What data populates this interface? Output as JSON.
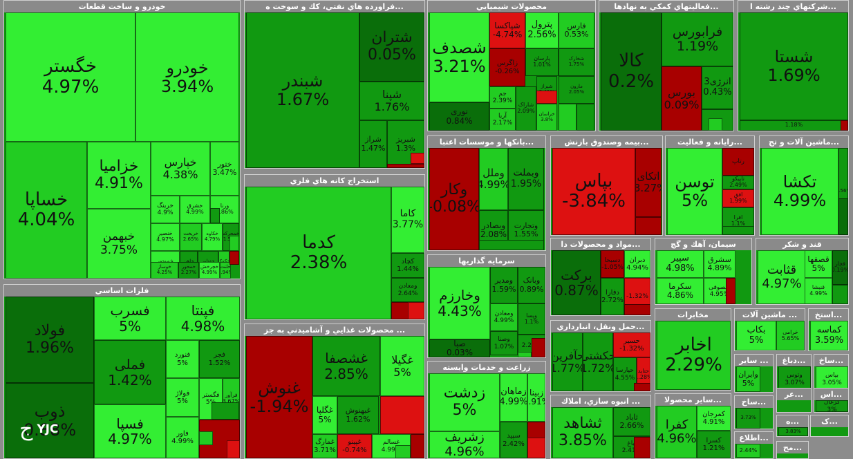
{
  "logo_text": "YJC",
  "colors": {
    "bright": "#33ee33",
    "light": "#22cc22",
    "mid": "#119911",
    "dark": "#0a6e0a",
    "red_dark": "#a80000",
    "red": "#dd1111"
  },
  "chart_data": {
    "type": "treemap",
    "sectors": [
      {
        "name": "خودرو و ساخت قطعات",
        "tiles": [
          {
            "name": "خگستر",
            "value": "4.97%"
          },
          {
            "name": "خودرو",
            "value": "3.94%"
          },
          {
            "name": "خساپا",
            "value": "4.04%"
          },
          {
            "name": "خزامیا",
            "value": "4.91%"
          },
          {
            "name": "خپارس",
            "value": "4.38%"
          },
          {
            "name": "ختور",
            "value": "3.47%"
          },
          {
            "name": "خبهمن",
            "value": "3.75%"
          },
          {
            "name": "خرینگ",
            "value": "4.9%"
          },
          {
            "name": "خشرق",
            "value": "4.99%"
          },
          {
            "name": "ورنا",
            "value": "3.86%"
          },
          {
            "name": "خنصیر",
            "value": "4.97%"
          },
          {
            "name": "خریخت",
            "value": "2.65%"
          },
          {
            "name": "خکاوه",
            "value": "4.79%"
          },
          {
            "name": "خمحرکه",
            "value": "1.55%"
          },
          {
            "name": "خموتور",
            "value": "4.91%"
          },
          {
            "name": "خاهن",
            "value": "3.12%"
          },
          {
            "name": "خفناور",
            "value": "2.55%"
          },
          {
            "name": "خکمک",
            "value": "3.6%"
          },
          {
            "name": "خوساز",
            "value": "4.25%"
          },
          {
            "name": "خمحور",
            "value": "2.27%"
          },
          {
            "name": "خچرخش",
            "value": "4.99%"
          },
          {
            "name": "خلنت",
            "value": "3.94%"
          }
        ]
      },
      {
        "name": "فراورده هاي نفتي، كك و سوخت ه...",
        "tiles": [
          {
            "name": "شبندر",
            "value": "1.67%"
          },
          {
            "name": "شتران",
            "value": "0.05%"
          },
          {
            "name": "شپنا",
            "value": "1.76%"
          },
          {
            "name": "شراز",
            "value": "1.47%"
          },
          {
            "name": "شبریز",
            "value": "1.3%"
          }
        ]
      },
      {
        "name": "محصولات شيميايي",
        "tiles": [
          {
            "name": "شصدف",
            "value": "3.21%"
          },
          {
            "name": "شپاکسا",
            "value": "-4.74%"
          },
          {
            "name": "پترول",
            "value": "2.56%"
          },
          {
            "name": "فارس",
            "value": "0.53%"
          },
          {
            "name": "نوری",
            "value": "0.84%"
          },
          {
            "name": "زاگرس",
            "value": "-0.26%"
          },
          {
            "name": "پارسان",
            "value": "1.01%"
          },
          {
            "name": "شخارک",
            "value": "1.75%"
          },
          {
            "name": "جم",
            "value": "2.39%"
          },
          {
            "name": "آریا",
            "value": "2.17%"
          },
          {
            "name": "شاراک",
            "value": "2.09%"
          },
          {
            "name": "شیراز",
            "value": "2.41%"
          },
          {
            "name": "خراسان",
            "value": "3.8%"
          },
          {
            "name": "مارون",
            "value": "2.05%"
          }
        ]
      },
      {
        "name": "فعاليتهاي كمكي به نهادها...",
        "tiles": [
          {
            "name": "کالا",
            "value": "0.2%"
          },
          {
            "name": "فرابورس",
            "value": "1.19%"
          },
          {
            "name": "بورس",
            "value": "0.09%"
          },
          {
            "name": "انرژی3",
            "value": "0.43%"
          }
        ]
      },
      {
        "name": "شركتهاي چند رشته ا...",
        "tiles": [
          {
            "name": "شستا",
            "value": "1.69%"
          },
          {
            "name": "",
            "value": "1.18%"
          }
        ]
      },
      {
        "name": "استخراج كانه هاي فلزي",
        "tiles": [
          {
            "name": "کدما",
            "value": "2.38%"
          },
          {
            "name": "کاما",
            "value": "3.77%"
          },
          {
            "name": "کچاد",
            "value": "1.44%"
          },
          {
            "name": "ومعادن",
            "value": "2.64%"
          }
        ]
      },
      {
        "name": "بانكها و موسسات اعتبا...",
        "tiles": [
          {
            "name": "وکار",
            "value": "-0.08%"
          },
          {
            "name": "وملل",
            "value": "4.99%"
          },
          {
            "name": "وبملت",
            "value": "1.95%"
          },
          {
            "name": "وبصادر",
            "value": "2.08%"
          },
          {
            "name": "وتجارت",
            "value": "1.55%"
          }
        ]
      },
      {
        "name": "بيمه وصندوق بازنش...",
        "tiles": [
          {
            "name": "بپاس",
            "value": "-3.84%"
          },
          {
            "name": "اتکای",
            "value": "-3.27%"
          }
        ]
      },
      {
        "name": "رايانه و فعاليت...",
        "tiles": [
          {
            "name": "توسن",
            "value": "5%"
          },
          {
            "name": "رتاپ",
            "value": ""
          },
          {
            "name": "تاپیکو",
            "value": "2.49%"
          },
          {
            "name": "افق",
            "value": "1.99%"
          },
          {
            "name": "افرا",
            "value": "1.1%"
          }
        ]
      },
      {
        "name": "ماشين آلات و تج...",
        "tiles": [
          {
            "name": "تکشا",
            "value": "4.99%"
          },
          {
            "name": "",
            "value": "1.56%"
          }
        ]
      },
      {
        "name": "فلزات اساسي",
        "tiles": [
          {
            "name": "فولاد",
            "value": "1.96%"
          },
          {
            "name": "فسرب",
            "value": "5%"
          },
          {
            "name": "فپنتا",
            "value": "4.98%"
          },
          {
            "name": "ذوب",
            "value": "0.88%"
          },
          {
            "name": "فملی",
            "value": "1.42%"
          },
          {
            "name": "فنورد",
            "value": "5%"
          },
          {
            "name": "فجر",
            "value": "1.52%"
          },
          {
            "name": "فولاژ",
            "value": "5%"
          },
          {
            "name": "فاور",
            "value": "4.99%"
          },
          {
            "name": "فسپا",
            "value": "4.97%"
          },
          {
            "name": "فگستر",
            "value": "5%"
          },
          {
            "name": "فرآور",
            "value": "3.67%"
          }
        ]
      },
      {
        "name": "سرمايه گذاريها",
        "tiles": [
          {
            "name": "وخارزم",
            "value": "4.43%"
          },
          {
            "name": "ومدیر",
            "value": "1.59%"
          },
          {
            "name": "وبانک",
            "value": "0.89%"
          },
          {
            "name": "ومعادن",
            "value": "4.99%"
          },
          {
            "name": "وصنا",
            "value": "1.07%"
          },
          {
            "name": "وپسا",
            "value": "1.1%"
          },
          {
            "name": "صبا",
            "value": "0.03%"
          },
          {
            "name": "",
            "value": "2.22%"
          }
        ]
      },
      {
        "name": "محصولات غذايي و آشاميدني به جز ...",
        "tiles": [
          {
            "name": "غنوش",
            "value": "-1.94%"
          },
          {
            "name": "غشصفا",
            "value": "2.85%"
          },
          {
            "name": "غگیلا",
            "value": "5%"
          },
          {
            "name": "غگلپا",
            "value": "5%"
          },
          {
            "name": "غبهنوش",
            "value": "1.62%"
          },
          {
            "name": "غمارگ",
            "value": "3.71%"
          },
          {
            "name": "غپینو",
            "value": "-0.74%"
          },
          {
            "name": "غسالم",
            "value": "4.99%"
          }
        ]
      },
      {
        "name": "زراعت و خدمات وابسته",
        "tiles": [
          {
            "name": "زدشت",
            "value": "5%"
          },
          {
            "name": "زماهان",
            "value": "4.99%"
          },
          {
            "name": "زبینا",
            "value": "4.91%"
          },
          {
            "name": "زشریف",
            "value": "4.96%"
          },
          {
            "name": "سپید",
            "value": "2.42%"
          },
          {
            "name": "زگلدشت",
            "value": "1.16%"
          }
        ]
      },
      {
        "name": "مواد و محصولات دا...",
        "tiles": [
          {
            "name": "برکت",
            "value": "0.87%"
          },
          {
            "name": "دسبحا",
            "value": "-1.05%"
          },
          {
            "name": "دبران",
            "value": "4.94%"
          },
          {
            "name": "دفارا",
            "value": "2.72%"
          },
          {
            "name": "",
            "value": "-1.32%"
          }
        ]
      },
      {
        "name": "سيمان، آهك و گچ",
        "tiles": [
          {
            "name": "سپیر",
            "value": "4.98%"
          },
          {
            "name": "سشرق",
            "value": "4.89%"
          },
          {
            "name": "سکرما",
            "value": "4.86%"
          },
          {
            "name": "سصوفی",
            "value": "4.95%"
          }
        ]
      },
      {
        "name": "قند و شكر",
        "tiles": [
          {
            "name": "قثابت",
            "value": "4.97%"
          },
          {
            "name": "قصفها",
            "value": "5%"
          },
          {
            "name": "قچار",
            "value": "0.19%"
          },
          {
            "name": "قنیشا",
            "value": "4.99%"
          },
          {
            "name": "قاسم",
            "value": "4.98%"
          }
        ]
      },
      {
        "name": "حمل ونقل، انبارداري...",
        "tiles": [
          {
            "name": "حآفرین",
            "value": "1.77%"
          },
          {
            "name": "حکشتی",
            "value": "1.72%"
          },
          {
            "name": "حسیر",
            "value": "-1.32%"
          },
          {
            "name": "حپارسا",
            "value": "4.55%"
          },
          {
            "name": "حتاید",
            "value": "1.28%"
          }
        ]
      },
      {
        "name": "مخابرات",
        "tiles": [
          {
            "name": "اخابر",
            "value": "2.29%"
          }
        ]
      },
      {
        "name": "ماشين آلات ...",
        "tiles": [
          {
            "name": "بکاب",
            "value": "5%"
          },
          {
            "name": "خرامی",
            "value": "5.65%"
          }
        ]
      },
      {
        "name": "استخ...",
        "tiles": [
          {
            "name": "کماسه",
            "value": "3.59%"
          }
        ]
      },
      {
        "name": "انبوه سازي، املاك ...",
        "tiles": [
          {
            "name": "ثشاهد",
            "value": "3.85%"
          },
          {
            "name": "ثاباد",
            "value": "2.66%"
          },
          {
            "name": "ثنوسا",
            "value": "4.96%"
          },
          {
            "name": "ثباغ",
            "value": "2.41%"
          }
        ]
      },
      {
        "name": "ساير محصولا...",
        "tiles": [
          {
            "name": "کفرا",
            "value": "4.96%"
          },
          {
            "name": "کمرجان",
            "value": "4.91%"
          },
          {
            "name": "کسرا",
            "value": "1.21%"
          }
        ]
      },
      {
        "name": "ساير ...",
        "tiles": [
          {
            "name": "وایران",
            "value": "5%"
          }
        ]
      },
      {
        "name": "دباغ...",
        "tiles": [
          {
            "name": "وتوس",
            "value": "3.07%"
          }
        ]
      },
      {
        "name": "ساخ...",
        "tiles": [
          {
            "name": "بپاس",
            "value": "3.05%"
          }
        ]
      },
      {
        "name": "عر...",
        "tiles": []
      },
      {
        "name": "اس...",
        "tiles": [
          {
            "name": "کزغال",
            "value": "3%"
          }
        ]
      },
      {
        "name": "ساخ...",
        "tiles": [
          {
            "name": "",
            "value": "3.73%"
          }
        ]
      },
      {
        "name": "ه...",
        "tiles": [
          {
            "name": "",
            "value": "3.83%"
          }
        ]
      },
      {
        "name": "ک...",
        "tiles": []
      },
      {
        "name": "اطلاع...",
        "tiles": [
          {
            "name": "",
            "value": "2.44%"
          }
        ]
      },
      {
        "name": "مح...",
        "tiles": []
      }
    ]
  }
}
